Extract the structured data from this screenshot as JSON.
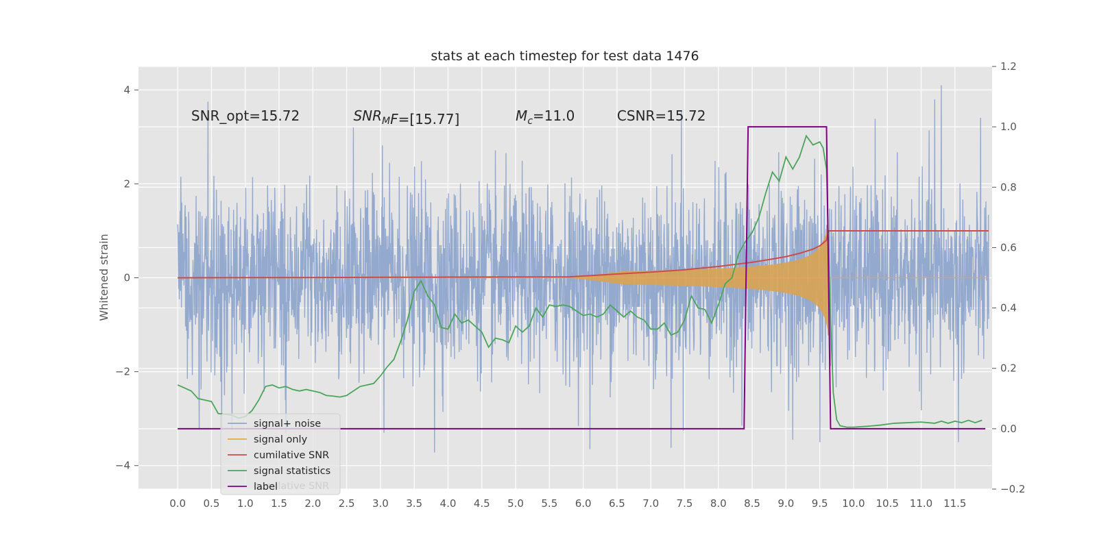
{
  "chart_data": {
    "type": "line",
    "title": "stats at each timestep for test data 1476",
    "ylabel": "Whitened strain",
    "y2label": "",
    "xlim": [
      -0.58,
      12.05
    ],
    "ylim": [
      -4.5,
      4.5
    ],
    "y2lim": [
      -0.2,
      1.2
    ],
    "grid": true,
    "legend_position": "lower-left",
    "x_ticks": [
      0.0,
      0.5,
      1.0,
      1.5,
      2.0,
      2.5,
      3.0,
      3.5,
      4.0,
      4.5,
      5.0,
      5.5,
      6.0,
      6.5,
      7.0,
      7.5,
      8.0,
      8.5,
      9.0,
      9.5,
      10.0,
      10.5,
      11.0,
      11.5
    ],
    "x_tick_labels": [
      "0.0",
      "0.5",
      "1.0",
      "1.5",
      "2.0",
      "2.5",
      "3.0",
      "3.5",
      "4.0",
      "4.5",
      "5.0",
      "5.5",
      "6.0",
      "6.5",
      "7.0",
      "7.5",
      "8.0",
      "8.5",
      "9.0",
      "9.5",
      "10.0",
      "10.5",
      "11.0",
      "11.5"
    ],
    "y_ticks": [
      -4,
      -2,
      0,
      2,
      4
    ],
    "y_tick_labels": [
      "−4",
      "−2",
      "0",
      "2",
      "4"
    ],
    "y2_ticks": [
      -0.2,
      0.0,
      0.2,
      0.4,
      0.6,
      0.8,
      1.0,
      1.2
    ],
    "y2_tick_labels": [
      "−0.2",
      "0.0",
      "0.2",
      "0.4",
      "0.6",
      "0.8",
      "1.0",
      "1.2"
    ],
    "annotations": [
      {
        "id": "snr-opt",
        "text": "SNR_opt=15.72",
        "x": 0.2,
        "y": 3.35
      },
      {
        "id": "snr-mf",
        "base": "SNR",
        "sub": "M",
        "rest": "F=[15.77]",
        "x": 2.6,
        "y": 3.35
      },
      {
        "id": "mc",
        "base": "M",
        "sub": "c",
        "rest": "=11.0",
        "x": 5.0,
        "y": 3.35
      },
      {
        "id": "csnr",
        "text": "CSNR=15.72",
        "x": 6.5,
        "y": 3.35
      }
    ],
    "series": [
      {
        "name": "signal+ noise",
        "color": "#8fa5cc",
        "axis": "left",
        "noise_std": 0.95,
        "x_range": [
          0.0,
          12.0
        ],
        "spikes": [
          {
            "x": 0.45,
            "y": 3.75
          },
          {
            "x": 3.05,
            "y": -3.3
          },
          {
            "x": 3.8,
            "y": -3.72
          },
          {
            "x": 6.1,
            "y": -3.65
          },
          {
            "x": 7.3,
            "y": -3.62
          },
          {
            "x": 7.45,
            "y": 3.55
          },
          {
            "x": 9.1,
            "y": -3.45
          },
          {
            "x": 9.5,
            "y": -3.5
          },
          {
            "x": 11.3,
            "y": 4.1
          },
          {
            "x": 11.2,
            "y": 3.8
          },
          {
            "x": 11.55,
            "y": -3.5
          },
          {
            "x": 1.6,
            "y": -3.3
          },
          {
            "x": 2.6,
            "y": 3.2
          },
          {
            "x": 8.35,
            "y": -3.15
          },
          {
            "x": 0.65,
            "y": -3.2
          }
        ]
      },
      {
        "name": "signal only",
        "color": "#e8a93b",
        "axis": "left",
        "chirp_start": 5.8,
        "merger": 9.63,
        "peak_amplitude": 1.25,
        "fill_color": "#d9a352"
      },
      {
        "name": "cumilative SNR",
        "color": "#cc4c4c",
        "axis": "left",
        "x": [
          0.0,
          1.0,
          2.0,
          3.0,
          4.0,
          5.0,
          5.8,
          6.5,
          7.0,
          7.5,
          8.0,
          8.5,
          8.8,
          9.0,
          9.2,
          9.4,
          9.5,
          9.6,
          9.63,
          12.0
        ],
        "y": [
          0.0,
          0.003,
          0.006,
          0.01,
          0.014,
          0.018,
          0.02,
          0.08,
          0.12,
          0.17,
          0.24,
          0.33,
          0.4,
          0.45,
          0.52,
          0.61,
          0.68,
          0.8,
          1.0,
          1.0
        ]
      },
      {
        "name": "signal statistics",
        "color": "#4aa55a",
        "axis": "right",
        "x": [
          0.0,
          0.1,
          0.2,
          0.3,
          0.4,
          0.5,
          0.6,
          0.7,
          0.8,
          0.9,
          1.0,
          1.1,
          1.2,
          1.3,
          1.4,
          1.5,
          1.6,
          1.7,
          1.8,
          1.9,
          2.0,
          2.1,
          2.2,
          2.3,
          2.4,
          2.5,
          2.6,
          2.7,
          2.8,
          2.9,
          3.0,
          3.1,
          3.2,
          3.3,
          3.4,
          3.5,
          3.6,
          3.7,
          3.8,
          3.9,
          4.0,
          4.1,
          4.2,
          4.3,
          4.4,
          4.5,
          4.6,
          4.7,
          4.8,
          4.9,
          5.0,
          5.1,
          5.2,
          5.3,
          5.4,
          5.5,
          5.6,
          5.7,
          5.8,
          5.9,
          6.0,
          6.1,
          6.2,
          6.3,
          6.4,
          6.5,
          6.6,
          6.7,
          6.8,
          6.9,
          7.0,
          7.1,
          7.2,
          7.3,
          7.4,
          7.5,
          7.6,
          7.7,
          7.8,
          7.9,
          8.0,
          8.1,
          8.2,
          8.3,
          8.4,
          8.5,
          8.6,
          8.7,
          8.8,
          8.9,
          9.0,
          9.1,
          9.2,
          9.3,
          9.4,
          9.5,
          9.55,
          9.6,
          9.65,
          9.7,
          9.75,
          9.8,
          9.9,
          10.0,
          10.2,
          10.4,
          10.6,
          10.8,
          11.0,
          11.2,
          11.3,
          11.4,
          11.5,
          11.6,
          11.7,
          11.8,
          11.9
        ],
        "y": [
          0.145,
          0.135,
          0.125,
          0.1,
          0.095,
          0.09,
          0.05,
          0.048,
          0.045,
          0.035,
          0.04,
          0.06,
          0.095,
          0.14,
          0.145,
          0.135,
          0.14,
          0.13,
          0.125,
          0.13,
          0.125,
          0.12,
          0.11,
          0.108,
          0.105,
          0.11,
          0.125,
          0.14,
          0.145,
          0.15,
          0.175,
          0.205,
          0.23,
          0.29,
          0.36,
          0.455,
          0.49,
          0.44,
          0.41,
          0.335,
          0.33,
          0.38,
          0.35,
          0.36,
          0.34,
          0.32,
          0.27,
          0.3,
          0.295,
          0.285,
          0.34,
          0.32,
          0.34,
          0.4,
          0.37,
          0.41,
          0.405,
          0.41,
          0.405,
          0.39,
          0.375,
          0.38,
          0.37,
          0.38,
          0.41,
          0.39,
          0.37,
          0.39,
          0.37,
          0.36,
          0.33,
          0.33,
          0.35,
          0.31,
          0.32,
          0.36,
          0.44,
          0.4,
          0.395,
          0.35,
          0.41,
          0.48,
          0.5,
          0.58,
          0.62,
          0.65,
          0.7,
          0.78,
          0.85,
          0.82,
          0.9,
          0.86,
          0.9,
          0.97,
          0.94,
          0.95,
          0.93,
          0.86,
          0.42,
          0.12,
          0.03,
          0.01,
          0.005,
          0.005,
          0.008,
          0.012,
          0.018,
          0.02,
          0.022,
          0.018,
          0.025,
          0.018,
          0.025,
          0.02,
          0.028,
          0.02,
          0.028
        ]
      },
      {
        "name": "label",
        "color": "#800080",
        "axis": "right",
        "x": [
          0.0,
          8.38,
          8.44,
          9.6,
          9.66,
          11.95
        ],
        "y": [
          0.0,
          0.0,
          1.0,
          1.0,
          0.0,
          0.0
        ]
      }
    ],
    "legend": {
      "entries": [
        {
          "label": "signal+ noise",
          "color": "#8fa5cc"
        },
        {
          "label": "signal only",
          "color": "#e8a93b"
        },
        {
          "label": "cumilative SNR",
          "color": "#cc4c4c"
        },
        {
          "label": "signal statistics",
          "color": "#4aa55a"
        },
        {
          "label": "label",
          "color": "#800080"
        }
      ],
      "ghost_text": "cumilative SNR"
    }
  }
}
